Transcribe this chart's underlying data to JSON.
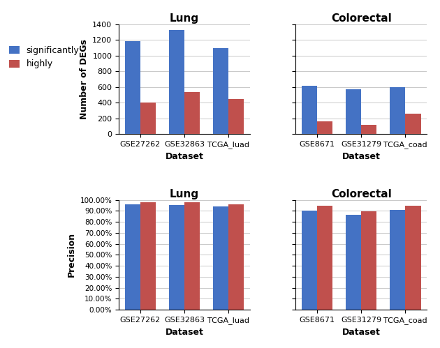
{
  "lung_deg": {
    "categories": [
      "GSE27262",
      "GSE32863",
      "TCGA_luad"
    ],
    "significantly": [
      1190,
      1325,
      1100
    ],
    "highly": [
      400,
      540,
      450
    ]
  },
  "colorectal_deg": {
    "categories": [
      "GSE8671",
      "GSE31279",
      "TCGA_coad"
    ],
    "significantly": [
      620,
      575,
      600
    ],
    "highly": [
      160,
      120,
      265
    ]
  },
  "lung_precision": {
    "categories": [
      "GSE27262",
      "GSE32863",
      "TCGA_luad"
    ],
    "significantly": [
      0.96,
      0.954,
      0.943
    ],
    "highly": [
      0.979,
      0.978,
      0.96
    ]
  },
  "colorectal_precision": {
    "categories": [
      "GSE8671",
      "GSE31279",
      "TCGA_coad"
    ],
    "significantly": [
      0.9,
      0.865,
      0.91
    ],
    "highly": [
      0.948,
      0.896,
      0.948
    ]
  },
  "color_significantly": "#4472C4",
  "color_highly": "#C0504D",
  "legend_labels": [
    "significantly",
    "highly"
  ],
  "title_lung": "Lung",
  "title_colorectal": "Colorectal",
  "ylabel_deg": "Number of DEGs",
  "ylabel_precision": "Precision",
  "xlabel": "Dataset",
  "deg_ylim": [
    0,
    1400
  ],
  "deg_yticks": [
    0,
    200,
    400,
    600,
    800,
    1000,
    1200,
    1400
  ],
  "bg_color": "#FFFFFF",
  "grid_color": "#C0C0C0"
}
